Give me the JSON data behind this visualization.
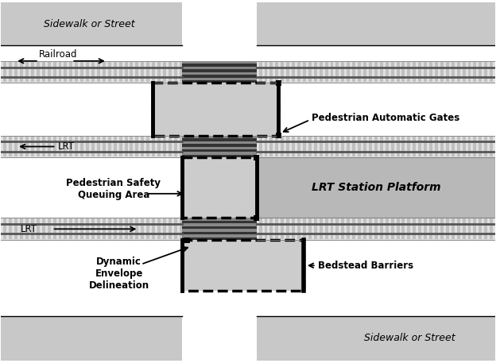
{
  "fig_width": 6.29,
  "fig_height": 4.57,
  "dpi": 100,
  "bg_color": "#ffffff",
  "light_gray": "#cccccc",
  "mid_gray": "#999999",
  "dark_gray": "#555555",
  "darker_gray": "#333333",
  "track_bg": "#e0e0e0",
  "track_tie": "#c0c0c0",
  "crossing_dark": "#555555",
  "crossing_stripe": "#777777",
  "platform_gray": "#b8b8b8",
  "sidewalk_gray": "#c8c8c8",
  "labels": {
    "sidewalk_top": "Sidewalk or Street",
    "sidewalk_bottom": "Sidewalk or Street",
    "railroad": "Railroad",
    "lrt_top": "LRT",
    "lrt_bottom": "LRT",
    "ped_safety": "Pedestrian Safety\nQueuing Area",
    "ped_gates": "Pedestrian Automatic Gates",
    "lrt_platform": "LRT Station Platform",
    "dynamic": "Dynamic\nEnvelope\nDelineation",
    "bedstead": "Bedstead Barriers"
  }
}
